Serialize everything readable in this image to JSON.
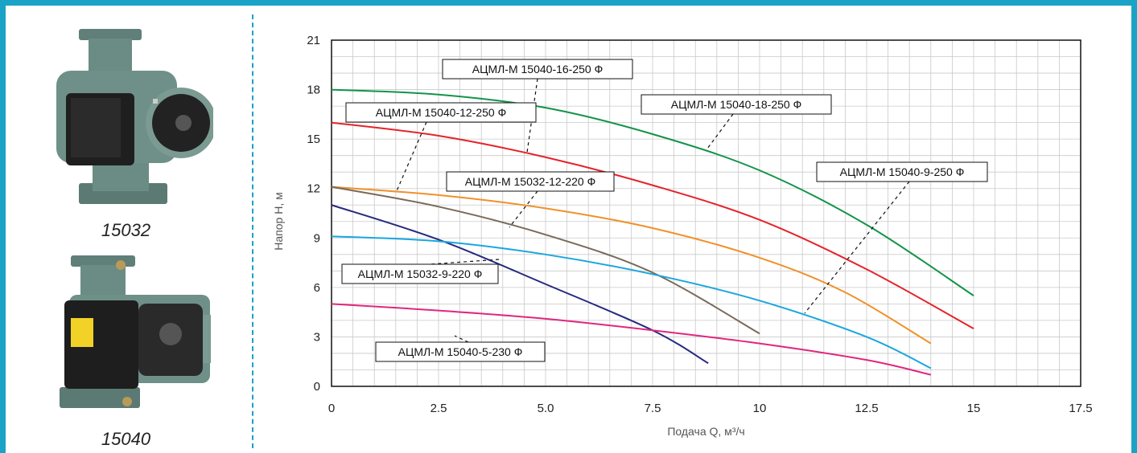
{
  "pumps": [
    {
      "caption": "15032"
    },
    {
      "caption": "15040"
    }
  ],
  "colors": {
    "frame": "#1aa3c6",
    "green": "#13934a",
    "red": "#e5232b",
    "orange": "#f0912a",
    "brown": "#7a6a5a",
    "navy": "#262a7c",
    "cyan": "#1aa7de",
    "magenta": "#e0267f"
  },
  "chart_data": {
    "type": "line",
    "xlabel": "Подача Q, м³/ч",
    "ylabel": "Напор Н, м",
    "xlim": [
      0,
      17.5
    ],
    "ylim": [
      0,
      21
    ],
    "xticks": [
      "0",
      "2.5",
      "5.0",
      "7.5",
      "10",
      "12.5",
      "15",
      "17.5"
    ],
    "yticks": [
      "0",
      "3",
      "6",
      "9",
      "12",
      "15",
      "18",
      "21"
    ],
    "grid": true,
    "series": [
      {
        "name": "АЦМЛ-М 15040-18-250 Ф",
        "color": "#13934a",
        "x": [
          0,
          2.5,
          5,
          7.5,
          10,
          12.5,
          15
        ],
        "y": [
          18,
          17.7,
          16.9,
          15.3,
          13.1,
          9.8,
          5.5
        ]
      },
      {
        "name": "АЦМЛ-М 15040-16-250 Ф",
        "color": "#e5232b",
        "x": [
          0,
          2.5,
          5,
          7.5,
          10,
          12.5,
          15
        ],
        "y": [
          16,
          15.2,
          13.9,
          12.2,
          10.1,
          7.1,
          3.5
        ]
      },
      {
        "name": "АЦМЛ-М 15040-12-250 Ф",
        "color": "#f0912a",
        "x": [
          0,
          2.5,
          5,
          7.5,
          10,
          12,
          14
        ],
        "y": [
          12.1,
          11.6,
          10.8,
          9.6,
          7.8,
          5.7,
          2.6
        ]
      },
      {
        "name": "АЦМЛ-М 15032-12-220 Ф",
        "color": "#7a6a5a",
        "x": [
          0,
          2.5,
          5,
          7.5,
          10
        ],
        "y": [
          12.1,
          10.9,
          9.2,
          6.9,
          3.2
        ]
      },
      {
        "name": "АЦМЛ-М 15032-9-220 Ф",
        "color": "#262a7c",
        "x": [
          0,
          2.5,
          5,
          7.5,
          8.8
        ],
        "y": [
          11,
          8.9,
          6.2,
          3.4,
          1.4
        ]
      },
      {
        "name": "АЦМЛ-М 15040-9-250 Ф",
        "color": "#1aa7de",
        "x": [
          0,
          2.5,
          5,
          7.5,
          10,
          12.5,
          14
        ],
        "y": [
          9.1,
          8.8,
          8.0,
          6.8,
          5.2,
          3.0,
          1.1
        ]
      },
      {
        "name": "АЦМЛ-М 15040-5-230 Ф",
        "color": "#e0267f",
        "x": [
          0,
          2.5,
          5,
          7.5,
          10,
          12.5,
          14
        ],
        "y": [
          5,
          4.6,
          4.1,
          3.4,
          2.6,
          1.6,
          0.7
        ]
      }
    ],
    "annotations": [
      {
        "text": "АЦМЛ-М 15040-16-250 Ф"
      },
      {
        "text": "АЦМЛ-М 15040-18-250 Ф"
      },
      {
        "text": "АЦМЛ-М 15040-12-250 Ф"
      },
      {
        "text": "АЦМЛ-М 15032-12-220 Ф"
      },
      {
        "text": "АЦМЛ-М 15040-9-250 Ф"
      },
      {
        "text": "АЦМЛ-М 15032-9-220 Ф"
      },
      {
        "text": "АЦМЛ-М 15040-5-230 Ф"
      }
    ]
  }
}
